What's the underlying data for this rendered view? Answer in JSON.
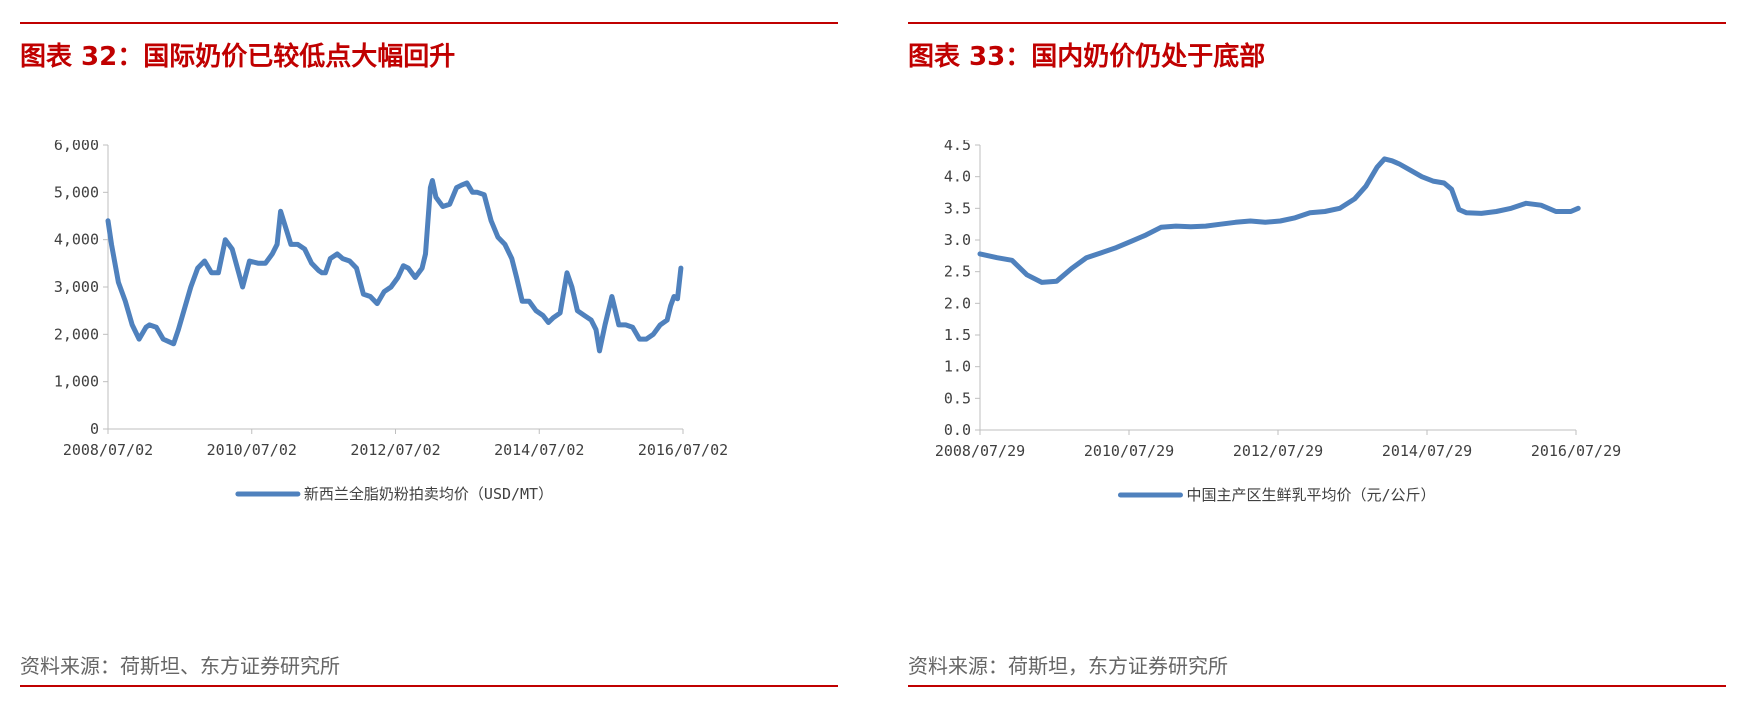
{
  "colors": {
    "accent": "#c00000",
    "line": "#4f81bd",
    "axis": "#bfbfbf"
  },
  "left": {
    "title": "图表 32：国际奶价已较低点大幅回升",
    "source": "资料来源：荷斯坦、东方证券研究所"
  },
  "right": {
    "title": "图表 33：国内奶价仍处于底部",
    "source": "资料来源：荷斯坦，东方证券研究所"
  },
  "chart_data": [
    {
      "type": "line",
      "title": "",
      "xlabel": "",
      "ylabel": "",
      "x_ticks": [
        "2008/07/02",
        "2010/07/02",
        "2012/07/02",
        "2014/07/02",
        "2016/07/02"
      ],
      "y_ticks": [
        "0",
        "1,000",
        "2,000",
        "3,000",
        "4,000",
        "5,000",
        "6,000"
      ],
      "xlim": [
        2008.5,
        2016.83
      ],
      "ylim": [
        0,
        6000
      ],
      "grid": false,
      "legend_position": "bottom",
      "series": [
        {
          "name": "新西兰全脂奶粉拍卖均价（USD/MT）",
          "x": [
            2008.5,
            2008.55,
            2008.65,
            2008.75,
            2008.85,
            2008.95,
            2009.05,
            2009.1,
            2009.2,
            2009.3,
            2009.45,
            2009.52,
            2009.6,
            2009.7,
            2009.8,
            2009.9,
            2010.0,
            2010.1,
            2010.2,
            2010.3,
            2010.45,
            2010.55,
            2010.68,
            2010.78,
            2010.88,
            2010.95,
            2011.0,
            2011.15,
            2011.25,
            2011.35,
            2011.45,
            2011.55,
            2011.6,
            2011.65,
            2011.72,
            2011.82,
            2011.9,
            2012.0,
            2012.1,
            2012.2,
            2012.3,
            2012.4,
            2012.5,
            2012.6,
            2012.7,
            2012.78,
            2012.85,
            2012.95,
            2013.05,
            2013.1,
            2013.17,
            2013.2,
            2013.25,
            2013.3,
            2013.35,
            2013.45,
            2013.55,
            2013.62,
            2013.7,
            2013.78,
            2013.85,
            2013.95,
            2014.05,
            2014.15,
            2014.25,
            2014.35,
            2014.42,
            2014.5,
            2014.6,
            2014.7,
            2014.8,
            2014.88,
            2014.95,
            2015.05,
            2015.15,
            2015.22,
            2015.3,
            2015.4,
            2015.5,
            2015.57,
            2015.62,
            2015.7,
            2015.8,
            2015.9,
            2016.0,
            2016.1,
            2016.2,
            2016.3,
            2016.4,
            2016.5,
            2016.6,
            2016.65,
            2016.7,
            2016.75,
            2016.8
          ],
          "values": [
            4400,
            3900,
            3100,
            2700,
            2200,
            1900,
            2150,
            2200,
            2150,
            1900,
            1800,
            2100,
            2500,
            3000,
            3400,
            3550,
            3300,
            3300,
            4000,
            3800,
            3000,
            3550,
            3500,
            3500,
            3700,
            3900,
            4600,
            3900,
            3900,
            3800,
            3500,
            3350,
            3300,
            3300,
            3600,
            3700,
            3600,
            3550,
            3400,
            2850,
            2800,
            2650,
            2900,
            3000,
            3200,
            3450,
            3400,
            3200,
            3400,
            3700,
            5100,
            5250,
            4900,
            4800,
            4700,
            4750,
            5100,
            5150,
            5200,
            5000,
            5000,
            4950,
            4400,
            4050,
            3900,
            3600,
            3200,
            2700,
            2700,
            2500,
            2400,
            2250,
            2350,
            2450,
            3300,
            3000,
            2500,
            2400,
            2300,
            2100,
            1650,
            2200,
            2800,
            2200,
            2200,
            2150,
            1900,
            1900,
            2000,
            2200,
            2300,
            2600,
            2800,
            2750,
            3400
          ]
        }
      ]
    },
    {
      "type": "line",
      "title": "",
      "xlabel": "",
      "ylabel": "",
      "x_ticks": [
        "2008/07/29",
        "2010/07/29",
        "2012/07/29",
        "2014/07/29",
        "2016/07/29"
      ],
      "y_ticks": [
        "0.0",
        "0.5",
        "1.0",
        "1.5",
        "2.0",
        "2.5",
        "3.0",
        "3.5",
        "4.0",
        "4.5"
      ],
      "xlim": [
        2008.57,
        2016.57
      ],
      "ylim": [
        0,
        4.5
      ],
      "grid": false,
      "legend_position": "bottom",
      "series": [
        {
          "name": "中国主产区生鲜乳平均价（元/公斤）",
          "x": [
            2008.57,
            2008.8,
            2009.0,
            2009.2,
            2009.4,
            2009.6,
            2009.8,
            2010.0,
            2010.2,
            2010.4,
            2010.6,
            2010.8,
            2011.0,
            2011.2,
            2011.4,
            2011.6,
            2011.8,
            2012.0,
            2012.2,
            2012.4,
            2012.6,
            2012.8,
            2013.0,
            2013.2,
            2013.4,
            2013.6,
            2013.75,
            2013.9,
            2014.0,
            2014.1,
            2014.2,
            2014.35,
            2014.5,
            2014.65,
            2014.8,
            2014.9,
            2015.0,
            2015.1,
            2015.3,
            2015.5,
            2015.7,
            2015.9,
            2016.1,
            2016.3,
            2016.5,
            2016.6
          ],
          "values": [
            2.78,
            2.72,
            2.68,
            2.45,
            2.33,
            2.35,
            2.55,
            2.72,
            2.8,
            2.88,
            2.98,
            3.08,
            3.2,
            3.22,
            3.21,
            3.22,
            3.25,
            3.28,
            3.3,
            3.28,
            3.3,
            3.35,
            3.43,
            3.45,
            3.5,
            3.65,
            3.85,
            4.15,
            4.28,
            4.25,
            4.2,
            4.1,
            4.0,
            3.93,
            3.9,
            3.8,
            3.48,
            3.43,
            3.42,
            3.45,
            3.5,
            3.58,
            3.55,
            3.45,
            3.45,
            3.5
          ]
        }
      ]
    }
  ]
}
